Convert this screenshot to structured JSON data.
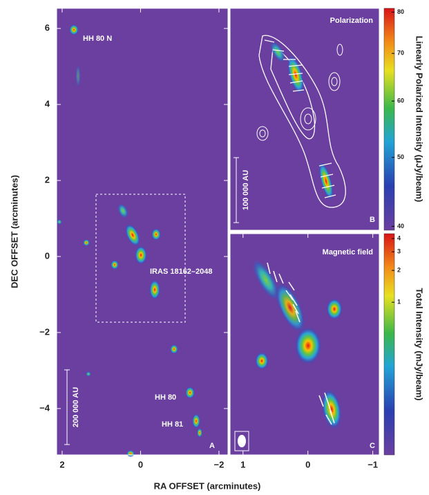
{
  "chart_data": [
    {
      "type": "heatmap",
      "panel": "A",
      "xlabel": "RA OFFSET (arcminutes)",
      "ylabel": "DEC OFFSET (arcminutes)",
      "xlim": [
        2.14,
        -2.23
      ],
      "ylim": [
        -5.22,
        6.53
      ],
      "xticks": [
        2,
        0,
        {
          "value": -2,
          "label": "−2"
        }
      ],
      "yticks": [
        6,
        4,
        2,
        0,
        {
          "value": -2,
          "label": "−2"
        },
        {
          "value": -4,
          "label": "−4"
        }
      ],
      "annotations": [
        "HH 80 N",
        "IRAS 18162–2048",
        "HH 80",
        "HH 81",
        "200 000 AU"
      ]
    },
    {
      "type": "heatmap",
      "panel": "B",
      "title": "Polarization",
      "annotations": [
        "100 000 AU"
      ]
    },
    {
      "type": "heatmap",
      "panel": "C",
      "title": "Magnetic field",
      "xlim": [
        1.2,
        -1.1
      ],
      "xticks": [
        1,
        0,
        {
          "value": -1,
          "label": "−1"
        }
      ]
    },
    {
      "type": "colorbar",
      "label": "Linearly Polarized Intensity (μJy/beam)",
      "log_scale": true,
      "ylim": [
        39.5,
        81
      ],
      "yticks": [
        80,
        70,
        60,
        50,
        40
      ]
    },
    {
      "type": "colorbar",
      "label": "Total Intensity (mJy/beam)",
      "log_scale": true,
      "ylim": [
        0.036,
        4.45
      ],
      "yticks": [
        4,
        3,
        2,
        1
      ]
    }
  ]
}
